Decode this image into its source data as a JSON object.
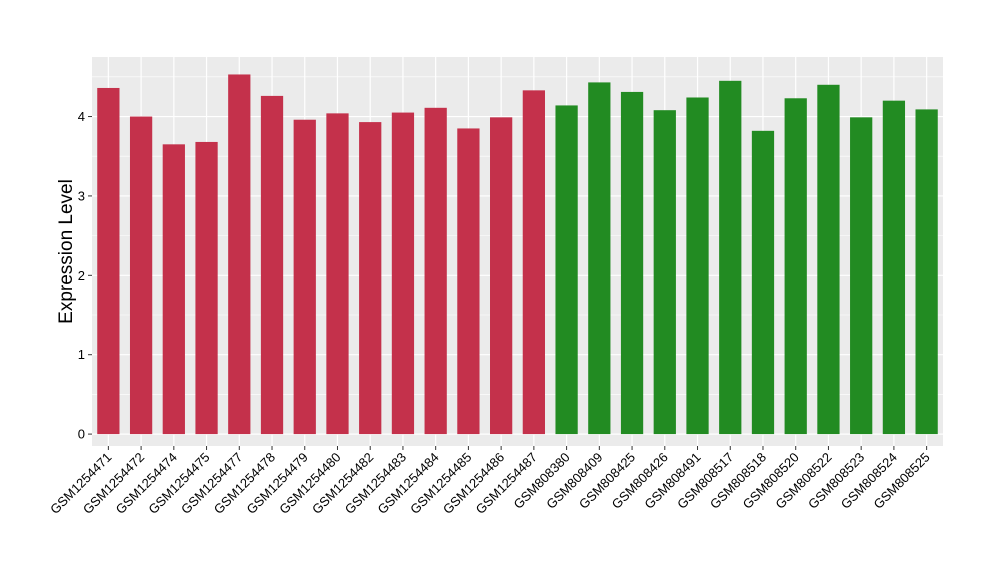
{
  "chart_data": {
    "type": "bar",
    "ylabel": "Expression Level",
    "xlabel": "",
    "ylim": [
      -0.15,
      4.75
    ],
    "yticks": [
      0,
      1,
      2,
      3,
      4
    ],
    "grid": true,
    "colors": {
      "group1": "#C4314B",
      "group2": "#228B22",
      "panel": "#EBEBEB",
      "grid": "#FFFFFF"
    },
    "categories": [
      "GSM1254471",
      "GSM1254472",
      "GSM1254474",
      "GSM1254475",
      "GSM1254477",
      "GSM1254478",
      "GSM1254479",
      "GSM1254480",
      "GSM1254482",
      "GSM1254483",
      "GSM1254484",
      "GSM1254485",
      "GSM1254486",
      "GSM1254487",
      "GSM808380",
      "GSM808409",
      "GSM808425",
      "GSM808426",
      "GSM808491",
      "GSM808517",
      "GSM808518",
      "GSM808520",
      "GSM808522",
      "GSM808523",
      "GSM808524",
      "GSM808525"
    ],
    "values": [
      4.36,
      4.0,
      3.65,
      3.68,
      4.53,
      4.26,
      3.96,
      4.04,
      3.93,
      4.05,
      4.11,
      3.85,
      3.99,
      4.33,
      4.14,
      4.43,
      4.31,
      4.08,
      4.24,
      4.45,
      3.82,
      4.23,
      4.4,
      3.99,
      4.2,
      4.09
    ],
    "groups": [
      1,
      1,
      1,
      1,
      1,
      1,
      1,
      1,
      1,
      1,
      1,
      1,
      1,
      1,
      2,
      2,
      2,
      2,
      2,
      2,
      2,
      2,
      2,
      2,
      2,
      2
    ]
  }
}
